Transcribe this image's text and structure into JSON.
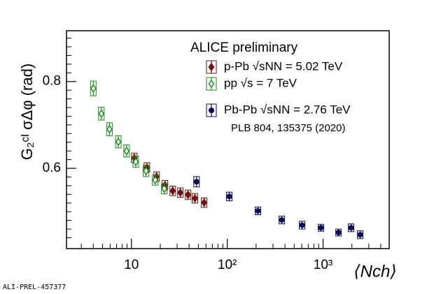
{
  "chart_data": {
    "type": "scatter",
    "title": "ALICE preliminary",
    "annotation": "PLB 804, 135375 (2020)",
    "watermark": "ALI-PREL-457377",
    "x_label": "⟨Nch⟩",
    "y_label": "G₂ᶜᴵ σΔφ (rad)",
    "xscale": "log",
    "xlim": [
      2.1,
      4900
    ],
    "ylim": [
      0.415,
      0.917
    ],
    "xticks": [
      10,
      {
        "value": 100,
        "label": "10²"
      },
      {
        "value": 1000,
        "label": "10³"
      }
    ],
    "xminorticks": [
      3,
      4,
      5,
      6,
      7,
      8,
      9,
      20,
      30,
      40,
      50,
      60,
      70,
      80,
      90,
      200,
      300,
      400,
      500,
      600,
      700,
      800,
      900,
      2000,
      3000,
      4000
    ],
    "yticks": [
      0.6,
      0.8
    ],
    "yminorticks": [
      0.44,
      0.46,
      0.48,
      0.5,
      0.52,
      0.54,
      0.56,
      0.58,
      0.62,
      0.64,
      0.66,
      0.68,
      0.7,
      0.72,
      0.74,
      0.76,
      0.78,
      0.82,
      0.84,
      0.86,
      0.88,
      0.9
    ],
    "grid": false,
    "series": [
      {
        "name": "p-Pb √sNN = 5.02 TeV",
        "color": "#6e1010",
        "marker": "diamond",
        "x": [
          10.7,
          14.5,
          18.3,
          22.4,
          27,
          32.4,
          39,
          46,
          57.4
        ],
        "values": [
          0.624,
          0.602,
          0.581,
          0.561,
          0.548,
          0.544,
          0.539,
          0.531,
          0.521
        ],
        "errors": [
          0.011,
          0.011,
          0.011,
          0.011,
          0.011,
          0.011,
          0.011,
          0.011,
          0.011
        ]
      },
      {
        "name": "pp √s = 7 TeV",
        "color": "#1f8a1f",
        "marker": "open-diamond",
        "x": [
          4.0,
          4.85,
          5.9,
          7.3,
          8.9,
          11.1,
          14.2,
          17.7,
          22
        ],
        "values": [
          0.784,
          0.726,
          0.69,
          0.661,
          0.64,
          0.615,
          0.594,
          0.573,
          0.553
        ],
        "errors": [
          0.017,
          0.015,
          0.015,
          0.014,
          0.014,
          0.013,
          0.013,
          0.012,
          0.012
        ]
      },
      {
        "name": "Pb-Pb √sNN = 2.76 TeV",
        "color": "#0c0c55",
        "marker": "circle",
        "x": [
          47.8,
          105,
          209,
          371,
          604,
          950,
          1450,
          1960,
          2440
        ],
        "values": [
          0.569,
          0.535,
          0.502,
          0.481,
          0.469,
          0.463,
          0.452,
          0.463,
          0.447
        ],
        "errors": [
          0.012,
          0.01,
          0.009,
          0.009,
          0.009,
          0.008,
          0.008,
          0.009,
          0.009
        ]
      }
    ]
  }
}
